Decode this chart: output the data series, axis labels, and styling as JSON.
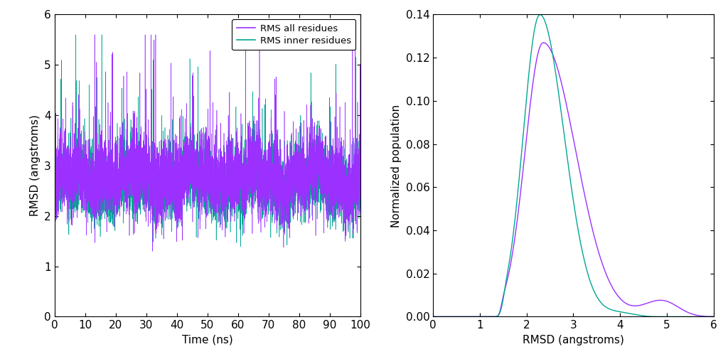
{
  "left_panel": {
    "xlabel": "Time (ns)",
    "ylabel": "RMSD (angstroms)",
    "xlim": [
      0,
      100
    ],
    "ylim": [
      0,
      6
    ],
    "xticks": [
      0,
      10,
      20,
      30,
      40,
      50,
      60,
      70,
      80,
      90,
      100
    ],
    "yticks": [
      0,
      1,
      2,
      3,
      4,
      5,
      6
    ],
    "color_all": "#9B30FF",
    "color_inner": "#00A693",
    "label_all": "RMS all residues",
    "label_inner": "RMS inner residues",
    "linewidth": 0.4
  },
  "right_panel": {
    "xlabel": "RMSD (angstroms)",
    "ylabel": "Normalized population",
    "xlim": [
      0,
      6
    ],
    "ylim": [
      0,
      0.14
    ],
    "xticks": [
      0,
      1,
      2,
      3,
      4,
      5,
      6
    ],
    "yticks": [
      0,
      0.02,
      0.04,
      0.06,
      0.08,
      0.1,
      0.12,
      0.14
    ],
    "color_all": "#9B30FF",
    "color_inner": "#00A693",
    "peak_all": 0.127,
    "peak_inner": 0.14,
    "linewidth": 1.0
  },
  "figure_bg": "#ffffff",
  "font_size": 11,
  "tick_font_size": 11
}
